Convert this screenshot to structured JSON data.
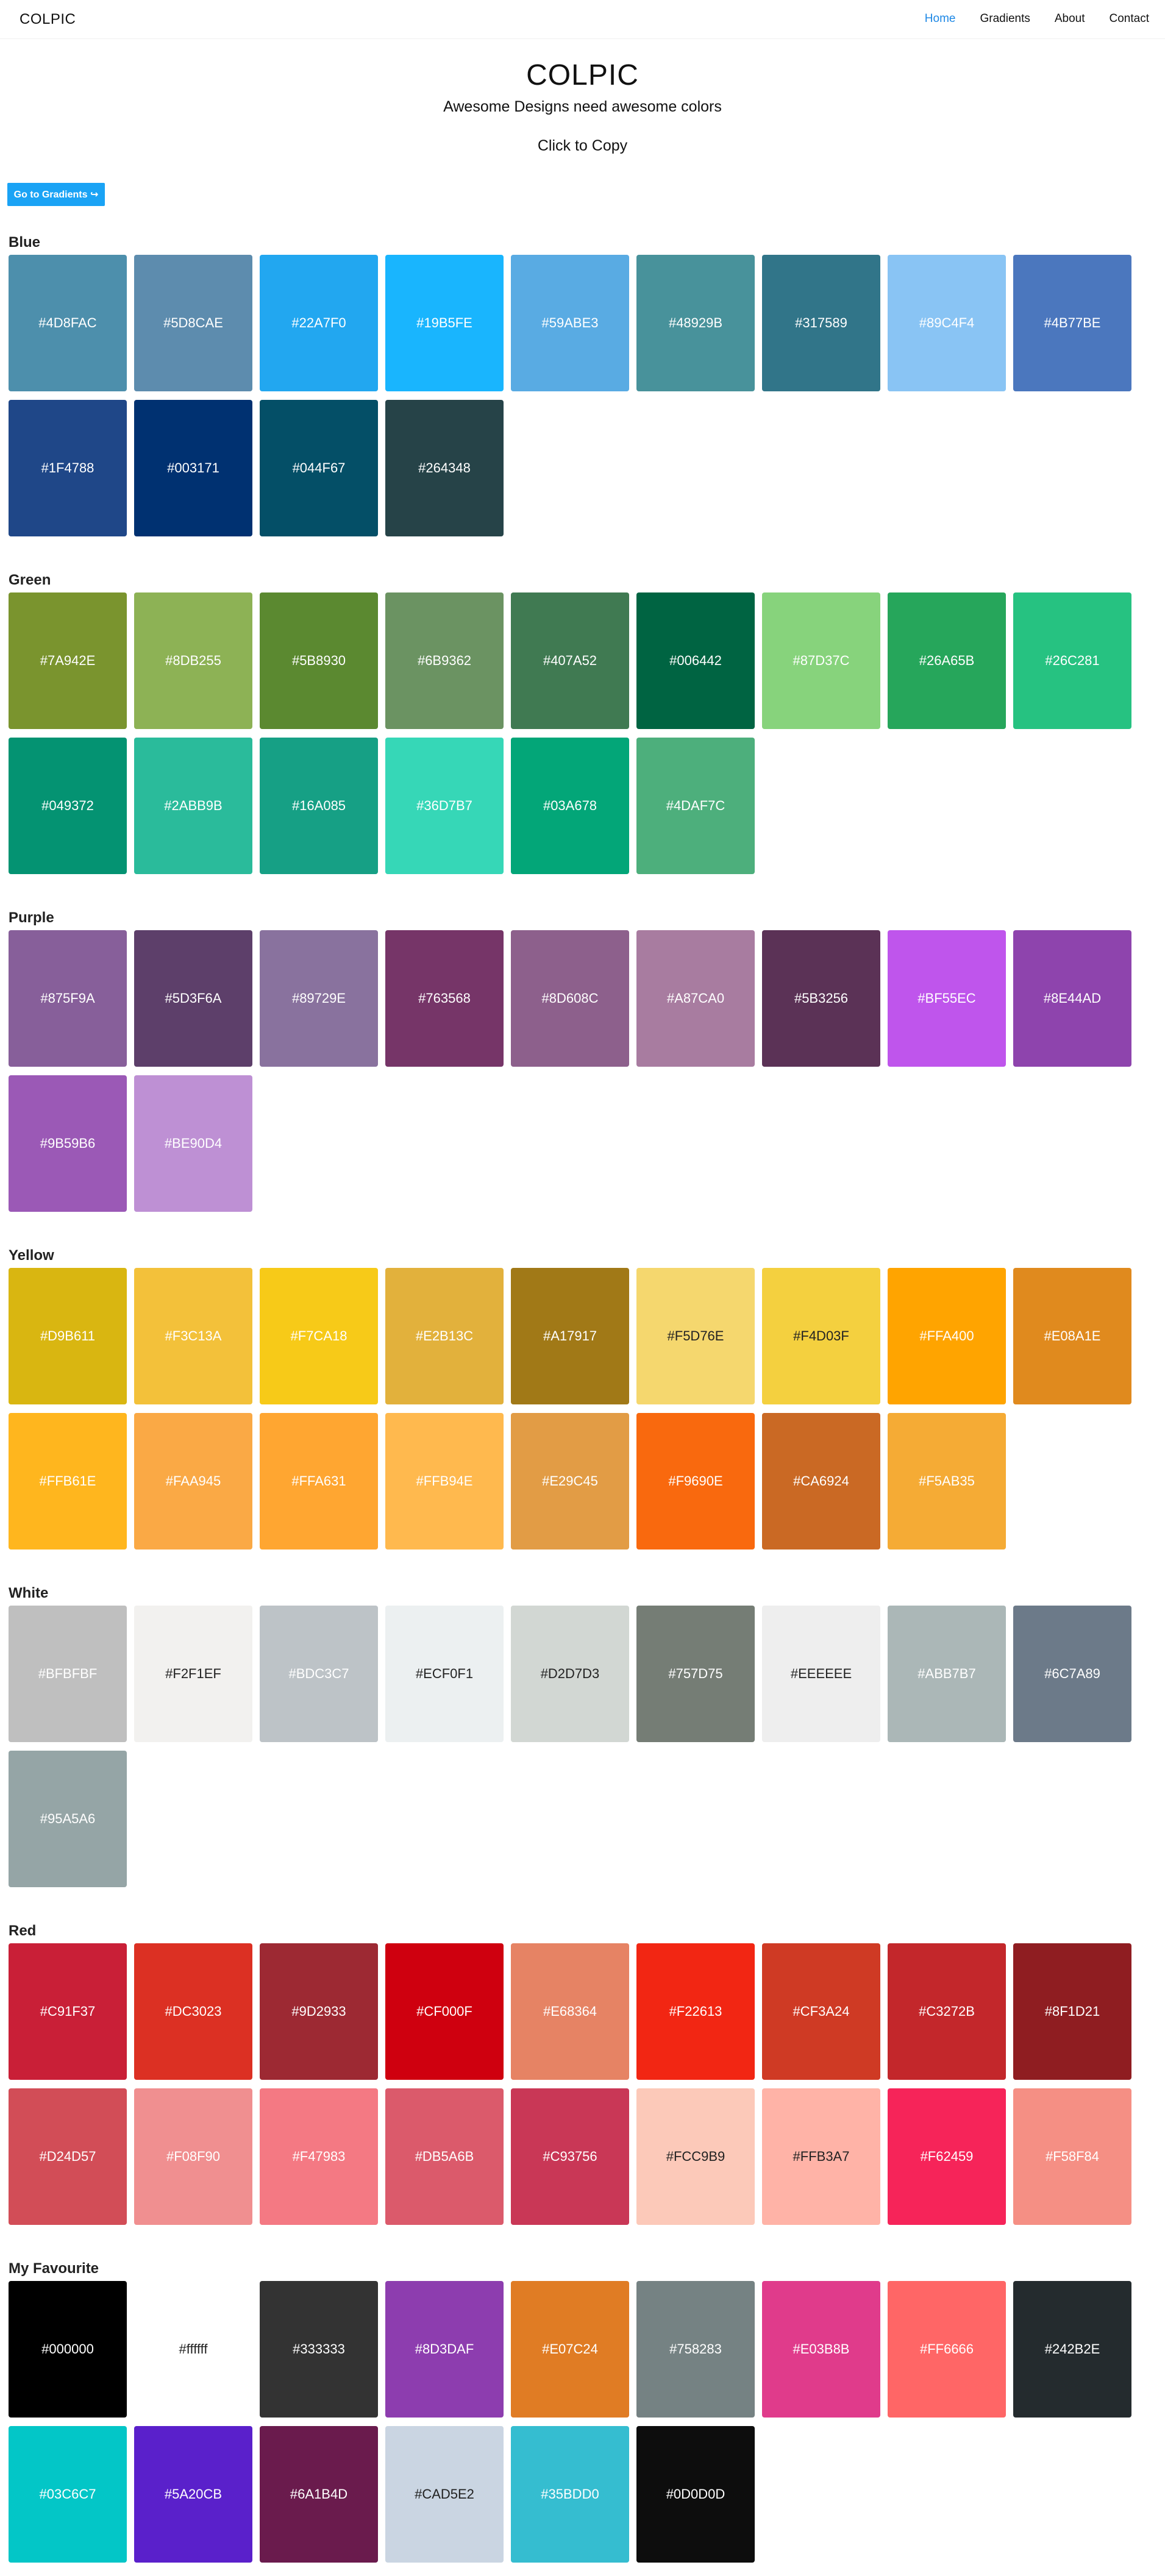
{
  "nav": {
    "brand": "COLPIC",
    "links": [
      "Home",
      "Gradients",
      "About",
      "Contact"
    ]
  },
  "hero": {
    "title": "COLPIC",
    "subtitle": "Awesome Designs need awesome colors",
    "copy_hint": "Click to Copy",
    "gradient_button": "Go to Gradients ↪"
  },
  "sections": [
    {
      "title": "Blue",
      "colors": [
        "#4D8FAC",
        "#5D8CAE",
        "#22A7F0",
        "#19B5FE",
        "#59ABE3",
        "#48929B",
        "#317589",
        "#89C4F4",
        "#4B77BE",
        "#1F4788",
        "#003171",
        "#044F67",
        "#264348"
      ]
    },
    {
      "title": "Green",
      "colors": [
        "#7A942E",
        "#8DB255",
        "#5B8930",
        "#6B9362",
        "#407A52",
        "#006442",
        "#87D37C",
        "#26A65B",
        "#26C281",
        "#049372",
        "#2ABB9B",
        "#16A085",
        "#36D7B7",
        "#03A678",
        "#4DAF7C"
      ]
    },
    {
      "title": "Purple",
      "colors": [
        "#875F9A",
        "#5D3F6A",
        "#89729E",
        "#763568",
        "#8D608C",
        "#A87CA0",
        "#5B3256",
        "#BF55EC",
        "#8E44AD",
        "#9B59B6",
        "#BE90D4"
      ]
    },
    {
      "title": "Yellow",
      "colors": [
        "#D9B611",
        "#F3C13A",
        "#F7CA18",
        "#E2B13C",
        "#A17917",
        "#F5D76E",
        "#F4D03F",
        "#FFA400",
        "#E08A1E",
        "#FFB61E",
        "#FAA945",
        "#FFA631",
        "#FFB94E",
        "#E29C45",
        "#F9690E",
        "#CA6924",
        "#F5AB35"
      ]
    },
    {
      "title": "White",
      "colors": [
        "#BFBFBF",
        "#F2F1EF",
        "#BDC3C7",
        "#ECF0F1",
        "#D2D7D3",
        "#757D75",
        "#EEEEEE",
        "#ABB7B7",
        "#6C7A89",
        "#95A5A6"
      ]
    },
    {
      "title": "Red",
      "colors": [
        "#C91F37",
        "#DC3023",
        "#9D2933",
        "#CF000F",
        "#E68364",
        "#F22613",
        "#CF3A24",
        "#C3272B",
        "#8F1D21",
        "#D24D57",
        "#F08F90",
        "#F47983",
        "#DB5A6B",
        "#C93756",
        "#FCC9B9",
        "#FFB3A7",
        "#F62459",
        "#F58F84"
      ]
    },
    {
      "title": "My Favourite",
      "colors": [
        "#000000",
        "#ffffff",
        "#333333",
        "#8D3DAF",
        "#E07C24",
        "#758283",
        "#E03B8B",
        "#FF6666",
        "#242B2E",
        "#03C6C7",
        "#5A20CB",
        "#6A1B4D",
        "#CAD5E2",
        "#35BDD0",
        "#0D0D0D"
      ]
    }
  ]
}
